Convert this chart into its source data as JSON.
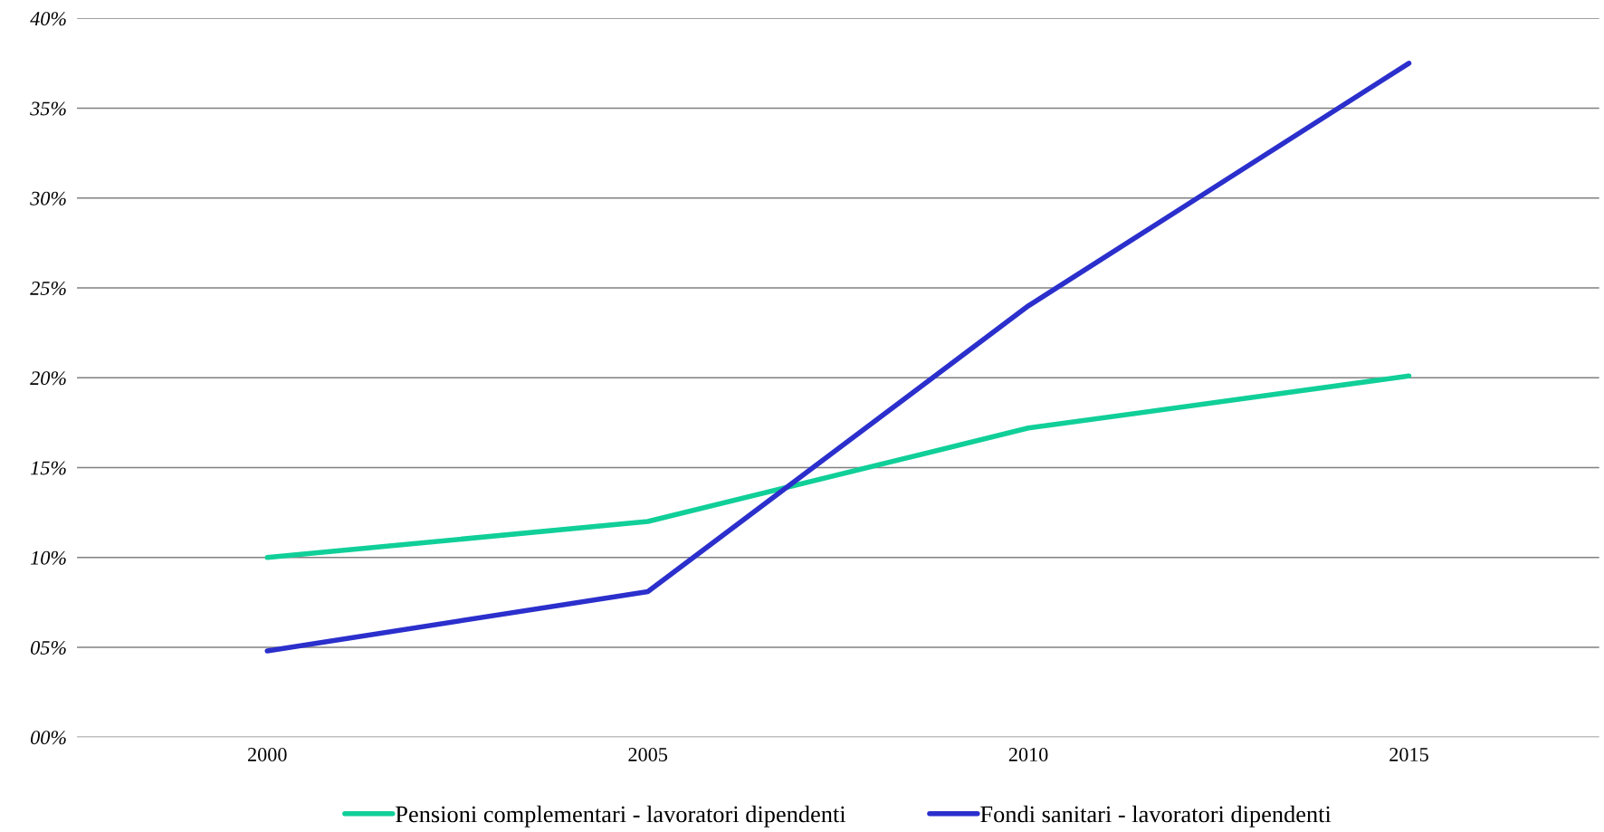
{
  "chart_data": {
    "type": "line",
    "categories": [
      "2000",
      "2005",
      "2010",
      "2015"
    ],
    "series": [
      {
        "name": "Pensioni complementari - lavoratori dipendenti",
        "color": "#10cf98",
        "values": [
          10.0,
          12.0,
          17.2,
          20.1
        ]
      },
      {
        "name": "Fondi sanitari - lavoratori dipendenti",
        "color": "#2b2fcc",
        "values": [
          4.8,
          8.1,
          24.0,
          37.5
        ]
      }
    ],
    "ylim": [
      0,
      40
    ],
    "yticks": [
      {
        "value": 0,
        "label": "00%"
      },
      {
        "value": 5,
        "label": "05%"
      },
      {
        "value": 10,
        "label": "10%"
      },
      {
        "value": 15,
        "label": "15%"
      },
      {
        "value": 20,
        "label": "20%"
      },
      {
        "value": 25,
        "label": "25%"
      },
      {
        "value": 30,
        "label": "30%"
      },
      {
        "value": 35,
        "label": "35%"
      },
      {
        "value": 40,
        "label": "40%"
      }
    ],
    "grid": "y",
    "legend": "bottom",
    "marker": "none",
    "line_style": "solid"
  }
}
